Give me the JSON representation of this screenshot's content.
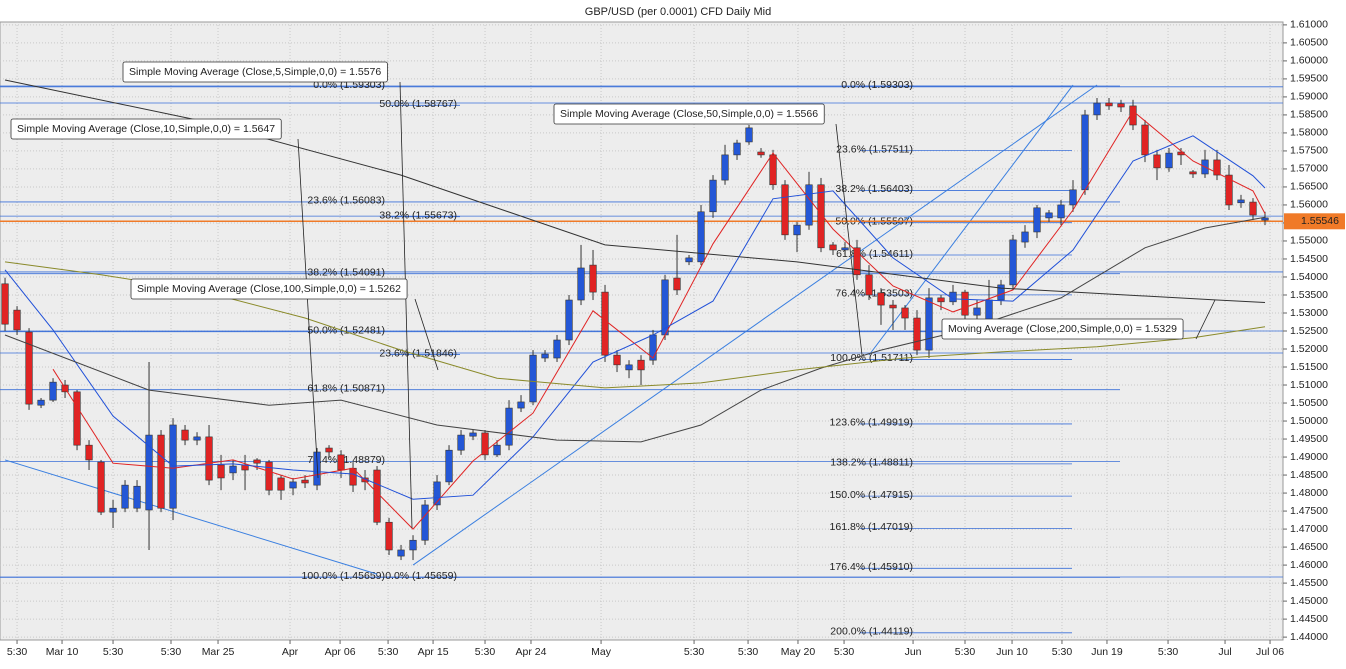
{
  "chart_data": {
    "type": "candlestick",
    "title": "GBP/USD (per 0.0001) CFD Daily Mid",
    "up_color": "#2457d6",
    "down_color": "#e02424",
    "xlim": [
      -0.42,
      106.5
    ],
    "xticks": [
      {
        "value": 1,
        "label": "5:30"
      },
      {
        "value": 4.75,
        "label": "Mar 10"
      },
      {
        "value": 9,
        "label": "5:30"
      },
      {
        "value": 13.83,
        "label": "5:30"
      },
      {
        "value": 17.75,
        "label": "Mar 25"
      },
      {
        "value": 23.75,
        "label": "Apr"
      },
      {
        "value": 27.92,
        "label": "Apr 06"
      },
      {
        "value": 31.92,
        "label": "5:30"
      },
      {
        "value": 35.67,
        "label": "Apr 15"
      },
      {
        "value": 40,
        "label": "5:30"
      },
      {
        "value": 43.83,
        "label": "Apr 24"
      },
      {
        "value": 49.67,
        "label": "May"
      },
      {
        "value": 57.42,
        "label": "5:30"
      },
      {
        "value": 61.92,
        "label": "5:30"
      },
      {
        "value": 66.08,
        "label": "May 20"
      },
      {
        "value": 69.92,
        "label": "5:30"
      },
      {
        "value": 75.67,
        "label": "Jun"
      },
      {
        "value": 80,
        "label": "5:30"
      },
      {
        "value": 83.92,
        "label": "Jun 10"
      },
      {
        "value": 88.08,
        "label": "5:30"
      },
      {
        "value": 91.83,
        "label": "Jun 19"
      },
      {
        "value": 96.92,
        "label": "5:30"
      },
      {
        "value": 101.67,
        "label": "Jul"
      },
      {
        "value": 105.42,
        "label": "Jul 06"
      }
    ],
    "ylim": [
      1.4392,
      1.6108
    ],
    "yticks": [
      {
        "value": 1.44,
        "label": "1.44000"
      },
      {
        "value": 1.445,
        "label": "1.44500"
      },
      {
        "value": 1.45,
        "label": "1.45000"
      },
      {
        "value": 1.455,
        "label": "1.45500"
      },
      {
        "value": 1.46,
        "label": "1.46000"
      },
      {
        "value": 1.465,
        "label": "1.46500"
      },
      {
        "value": 1.47,
        "label": "1.47000"
      },
      {
        "value": 1.475,
        "label": "1.47500"
      },
      {
        "value": 1.48,
        "label": "1.48000"
      },
      {
        "value": 1.485,
        "label": "1.48500"
      },
      {
        "value": 1.49,
        "label": "1.49000"
      },
      {
        "value": 1.495,
        "label": "1.49500"
      },
      {
        "value": 1.5,
        "label": "1.50000"
      },
      {
        "value": 1.505,
        "label": "1.50500"
      },
      {
        "value": 1.51,
        "label": "1.51000"
      },
      {
        "value": 1.515,
        "label": "1.51500"
      },
      {
        "value": 1.52,
        "label": "1.52000"
      },
      {
        "value": 1.525,
        "label": "1.52500"
      },
      {
        "value": 1.53,
        "label": "1.53000"
      },
      {
        "value": 1.535,
        "label": "1.53500"
      },
      {
        "value": 1.54,
        "label": "1.54000"
      },
      {
        "value": 1.545,
        "label": "1.54500"
      },
      {
        "value": 1.55,
        "label": "1.55000"
      },
      {
        "value": 1.555,
        "label": "1.55500"
      },
      {
        "value": 1.56,
        "label": "1.56000"
      },
      {
        "value": 1.565,
        "label": "1.56500"
      },
      {
        "value": 1.57,
        "label": "1.57000"
      },
      {
        "value": 1.575,
        "label": "1.57500"
      },
      {
        "value": 1.58,
        "label": "1.58000"
      },
      {
        "value": 1.585,
        "label": "1.58500"
      },
      {
        "value": 1.59,
        "label": "1.59000"
      },
      {
        "value": 1.595,
        "label": "1.59500"
      },
      {
        "value": 1.6,
        "label": "1.60000"
      },
      {
        "value": 1.605,
        "label": "1.60500"
      },
      {
        "value": 1.61,
        "label": "1.61000"
      }
    ],
    "grid": true,
    "last_price": {
      "value": 1.55546,
      "label": "1.55546",
      "color": "#f07a28"
    },
    "ohlc": [
      [
        1.5381,
        1.5398,
        1.525,
        1.5269
      ],
      [
        1.5308,
        1.5319,
        1.5239,
        1.5253
      ],
      [
        1.5247,
        1.5258,
        1.5031,
        1.5047
      ],
      [
        1.5044,
        1.5064,
        1.5036,
        1.5058
      ],
      [
        1.5058,
        1.5119,
        1.5053,
        1.5108
      ],
      [
        1.51,
        1.5114,
        1.5064,
        1.5081
      ],
      [
        1.5081,
        1.5086,
        1.4919,
        1.4933
      ],
      [
        1.4933,
        1.4947,
        1.4864,
        1.4892
      ],
      [
        1.4886,
        1.4892,
        1.4739,
        1.4747
      ],
      [
        1.4747,
        1.4781,
        1.4703,
        1.4758
      ],
      [
        1.4758,
        1.4836,
        1.4747,
        1.4822
      ],
      [
        1.4758,
        1.4836,
        1.4747,
        1.4819
      ],
      [
        1.4753,
        1.5164,
        1.4642,
        1.4961
      ],
      [
        1.4961,
        1.4975,
        1.4747,
        1.4758
      ],
      [
        1.4758,
        1.5008,
        1.4725,
        1.4989
      ],
      [
        1.4975,
        1.4989,
        1.4933,
        1.4947
      ],
      [
        1.4947,
        1.4969,
        1.4933,
        1.4956
      ],
      [
        1.4956,
        1.4989,
        1.4822,
        1.4836
      ],
      [
        1.4878,
        1.4906,
        1.4808,
        1.4842
      ],
      [
        1.4856,
        1.4892,
        1.4836,
        1.4875
      ],
      [
        1.4878,
        1.4906,
        1.4808,
        1.4864
      ],
      [
        1.4892,
        1.4897,
        1.4864,
        1.4883
      ],
      [
        1.4886,
        1.4892,
        1.4794,
        1.4808
      ],
      [
        1.4842,
        1.485,
        1.4781,
        1.4808
      ],
      [
        1.4814,
        1.4842,
        1.4794,
        1.4831
      ],
      [
        1.4836,
        1.485,
        1.4814,
        1.4828
      ],
      [
        1.4822,
        1.4925,
        1.4808,
        1.4914
      ],
      [
        1.4925,
        1.4933,
        1.4897,
        1.4914
      ],
      [
        1.4906,
        1.4919,
        1.4842,
        1.4864
      ],
      [
        1.4869,
        1.4886,
        1.4803,
        1.4822
      ],
      [
        1.4842,
        1.4864,
        1.4808,
        1.4831
      ],
      [
        1.4864,
        1.4875,
        1.4711,
        1.4719
      ],
      [
        1.4719,
        1.4731,
        1.4628,
        1.4642
      ],
      [
        1.4625,
        1.4656,
        1.4614,
        1.4642
      ],
      [
        1.4642,
        1.4683,
        1.4614,
        1.4669
      ],
      [
        1.4669,
        1.4781,
        1.4656,
        1.4767
      ],
      [
        1.4767,
        1.485,
        1.4753,
        1.4831
      ],
      [
        1.4831,
        1.4933,
        1.4822,
        1.4919
      ],
      [
        1.4919,
        1.4975,
        1.4906,
        1.4961
      ],
      [
        1.4958,
        1.4975,
        1.4947,
        1.4967
      ],
      [
        1.4967,
        1.4975,
        1.4892,
        1.4906
      ],
      [
        1.4906,
        1.4947,
        1.49,
        1.4933
      ],
      [
        1.4933,
        1.5058,
        1.4919,
        1.5036
      ],
      [
        1.5036,
        1.5072,
        1.5025,
        1.5053
      ],
      [
        1.5053,
        1.5197,
        1.5044,
        1.5183
      ],
      [
        1.5175,
        1.5197,
        1.5164,
        1.5186
      ],
      [
        1.5175,
        1.5239,
        1.5164,
        1.5225
      ],
      [
        1.5225,
        1.535,
        1.5211,
        1.5336
      ],
      [
        1.5336,
        1.5489,
        1.5322,
        1.5425
      ],
      [
        1.5433,
        1.5475,
        1.5336,
        1.5358
      ],
      [
        1.5358,
        1.5378,
        1.5164,
        1.5183
      ],
      [
        1.5183,
        1.5197,
        1.5136,
        1.5156
      ],
      [
        1.5142,
        1.5169,
        1.5119,
        1.5156
      ],
      [
        1.5169,
        1.5183,
        1.51,
        1.5142
      ],
      [
        1.5169,
        1.5253,
        1.5156,
        1.5239
      ],
      [
        1.5239,
        1.5406,
        1.5225,
        1.5392
      ],
      [
        1.5397,
        1.5517,
        1.535,
        1.5364
      ],
      [
        1.5442,
        1.5461,
        1.5433,
        1.5453
      ],
      [
        1.5442,
        1.56,
        1.5433,
        1.5581
      ],
      [
        1.5581,
        1.5683,
        1.5564,
        1.5669
      ],
      [
        1.5669,
        1.5767,
        1.5656,
        1.5739
      ],
      [
        1.5739,
        1.5781,
        1.5725,
        1.5772
      ],
      [
        1.5775,
        1.5822,
        1.5767,
        1.5814
      ],
      [
        1.5747,
        1.5758,
        1.5731,
        1.5739
      ],
      [
        1.5739,
        1.5753,
        1.5642,
        1.5656
      ],
      [
        1.5656,
        1.5669,
        1.5503,
        1.5517
      ],
      [
        1.5517,
        1.5553,
        1.5469,
        1.5544
      ],
      [
        1.5544,
        1.5692,
        1.5531,
        1.5656
      ],
      [
        1.5656,
        1.5675,
        1.5469,
        1.5481
      ],
      [
        1.5489,
        1.5497,
        1.5461,
        1.5475
      ],
      [
        1.5475,
        1.5497,
        1.5461,
        1.5481
      ],
      [
        1.5481,
        1.5503,
        1.5392,
        1.5406
      ],
      [
        1.5406,
        1.5433,
        1.5336,
        1.535
      ],
      [
        1.5356,
        1.5369,
        1.5267,
        1.5322
      ],
      [
        1.5322,
        1.5336,
        1.5253,
        1.5314
      ],
      [
        1.5314,
        1.5322,
        1.5253,
        1.5286
      ],
      [
        1.5286,
        1.5308,
        1.5183,
        1.5197
      ],
      [
        1.5197,
        1.5369,
        1.5175,
        1.5342
      ],
      [
        1.5342,
        1.535,
        1.5308,
        1.5331
      ],
      [
        1.5331,
        1.5378,
        1.5322,
        1.5358
      ],
      [
        1.5358,
        1.5364,
        1.5267,
        1.5294
      ],
      [
        1.5294,
        1.5336,
        1.5281,
        1.5314
      ],
      [
        1.5267,
        1.5392,
        1.5253,
        1.5336
      ],
      [
        1.5336,
        1.5392,
        1.5322,
        1.5378
      ],
      [
        1.5378,
        1.5517,
        1.5364,
        1.5503
      ],
      [
        1.5497,
        1.5544,
        1.5481,
        1.5525
      ],
      [
        1.5525,
        1.56,
        1.5508,
        1.5592
      ],
      [
        1.5564,
        1.5586,
        1.5553,
        1.5578
      ],
      [
        1.5564,
        1.5614,
        1.5544,
        1.56
      ],
      [
        1.56,
        1.5669,
        1.5581,
        1.5642
      ],
      [
        1.5642,
        1.5864,
        1.5628,
        1.585
      ],
      [
        1.585,
        1.5897,
        1.5836,
        1.5883
      ],
      [
        1.5883,
        1.5897,
        1.5864,
        1.5875
      ],
      [
        1.5881,
        1.5892,
        1.5858,
        1.5872
      ],
      [
        1.5875,
        1.5892,
        1.5808,
        1.5822
      ],
      [
        1.5822,
        1.5836,
        1.5719,
        1.5739
      ],
      [
        1.5739,
        1.5753,
        1.5669,
        1.5703
      ],
      [
        1.5703,
        1.5758,
        1.5692,
        1.5744
      ],
      [
        1.5747,
        1.5758,
        1.5711,
        1.5739
      ],
      [
        1.5692,
        1.5697,
        1.5675,
        1.5686
      ],
      [
        1.5686,
        1.5753,
        1.5675,
        1.5725
      ],
      [
        1.5725,
        1.5753,
        1.5669,
        1.5683
      ],
      [
        1.5683,
        1.5711,
        1.5586,
        1.56
      ],
      [
        1.5606,
        1.5628,
        1.5592,
        1.5614
      ],
      [
        1.5608,
        1.5619,
        1.5558,
        1.5572
      ],
      [
        1.5558,
        1.5581,
        1.5544,
        1.5564
      ]
    ],
    "series": [
      {
        "name": "Simple Moving Average (Close,5,Simple,0,0) = 1.5576",
        "color": "#e02424",
        "x": [
          4,
          9,
          14,
          19,
          24,
          29,
          34,
          39,
          44,
          49,
          54,
          59,
          64,
          69,
          74,
          79,
          84,
          89,
          94,
          99,
          104,
          105
        ],
        "values": [
          1.5144,
          1.4883,
          1.4869,
          1.4892,
          1.4839,
          1.4869,
          1.47,
          1.4889,
          1.5022,
          1.5306,
          1.5175,
          1.5492,
          1.5744,
          1.5533,
          1.5375,
          1.5303,
          1.5364,
          1.5586,
          1.5861,
          1.5722,
          1.5639,
          1.5576
        ]
      },
      {
        "name": "Simple Moving Average (Close,10,Simple,0,0) = 1.5647",
        "color": "#2050d8",
        "x": [
          0,
          4,
          9,
          14,
          19,
          24,
          29,
          34,
          39,
          44,
          49,
          54,
          59,
          64,
          69,
          74,
          79,
          84,
          89,
          94,
          99,
          104,
          105
        ],
        "values": [
          1.542,
          1.5253,
          1.5014,
          1.4875,
          1.4881,
          1.4864,
          1.4853,
          1.4783,
          1.4794,
          1.4956,
          1.5164,
          1.5239,
          1.5333,
          1.5617,
          1.5639,
          1.5453,
          1.5339,
          1.5333,
          1.5475,
          1.5722,
          1.5792,
          1.5681,
          1.5647
        ]
      },
      {
        "name": "Simple Moving Average (Close,50,Simple,0,0) = 1.5566",
        "color": "#444444",
        "x": [
          0,
          12,
          22,
          28,
          36,
          46,
          53,
          58,
          63,
          68,
          73,
          80,
          88,
          95,
          100,
          105
        ],
        "values": [
          1.5239,
          1.5086,
          1.5044,
          1.5058,
          1.4989,
          1.4947,
          1.4942,
          1.4989,
          1.5086,
          1.5147,
          1.5197,
          1.5253,
          1.5342,
          1.5481,
          1.5536,
          1.5566
        ]
      },
      {
        "name": "Simple Moving Average (Close,100,Simple,0,0) = 1.5262",
        "color": "#8a8a2a",
        "x": [
          0,
          8,
          16,
          25,
          33,
          41,
          50,
          58,
          66,
          75,
          83,
          91,
          99,
          105
        ],
        "values": [
          1.5442,
          1.5406,
          1.5364,
          1.5286,
          1.5197,
          1.5119,
          1.5092,
          1.5106,
          1.5142,
          1.5175,
          1.5192,
          1.5206,
          1.5231,
          1.5262
        ]
      },
      {
        "name": "Moving Average (Close,200,Simple,0,0) = 1.5329",
        "color": "#333333",
        "x": [
          0,
          16,
          33,
          50,
          66,
          83,
          101,
          105
        ],
        "values": [
          1.5947,
          1.5836,
          1.5683,
          1.5489,
          1.5442,
          1.5369,
          1.5336,
          1.5329
        ]
      }
    ],
    "horizontal_lines": {
      "color": "#3a6fd8",
      "values": [
        1.5928,
        1.5883,
        1.5569,
        1.5414,
        1.525,
        1.5189,
        1.4567
      ]
    },
    "trendlines": {
      "color": "#3a7fe0",
      "lines": [
        {
          "x": [
            0,
            31
          ],
          "values": [
            1.4892,
            1.4575
          ]
        },
        {
          "x": [
            34,
            91
          ],
          "values": [
            1.46,
            1.5933
          ]
        },
        {
          "x": [
            72,
            89
          ],
          "values": [
            1.5183,
            1.5933
          ]
        }
      ]
    },
    "fibonacci": [
      {
        "color": "#3a6fd8",
        "levels": [
          {
            "value": 1.59303,
            "label": "0.0% (1.59303)"
          },
          {
            "value": 1.56083,
            "label": "23.6% (1.56083)"
          },
          {
            "value": 1.54091,
            "label": "38.2% (1.54091)"
          },
          {
            "value": 1.52481,
            "label": "50.0% (1.52481)"
          },
          {
            "value": 1.50871,
            "label": "61.8% (1.50871)"
          },
          {
            "value": 1.48879,
            "label": "76.4% (1.48879)"
          },
          {
            "value": 1.45659,
            "label": "100.0% (1.45659)"
          }
        ]
      },
      {
        "color": "#3a6fd8",
        "levels": [
          {
            "value": 1.58767,
            "label": "50.0% (1.58767)"
          },
          {
            "value": 1.55673,
            "label": "38.2% (1.55673)"
          },
          {
            "value": 1.51846,
            "label": "23.6% (1.51846)"
          },
          {
            "value": 1.45659,
            "label": "0.0% (1.45659)"
          }
        ]
      },
      {
        "color": "#3a6fd8",
        "levels": [
          {
            "value": 1.59303,
            "label": "0.0% (1.59303)"
          },
          {
            "value": 1.57511,
            "label": "23.6% (1.57511)"
          },
          {
            "value": 1.56403,
            "label": "38.2% (1.56403)"
          },
          {
            "value": 1.55507,
            "label": "50.0% (1.55507)"
          },
          {
            "value": 1.54611,
            "label": "61.8% (1.54611)"
          },
          {
            "value": 1.53503,
            "label": "76.4% (1.53503)"
          },
          {
            "value": 1.51711,
            "label": "100.0% (1.51711)"
          },
          {
            "value": 1.49919,
            "label": "123.6% (1.49919)"
          },
          {
            "value": 1.48811,
            "label": "138.2% (1.48811)"
          },
          {
            "value": 1.47915,
            "label": "150.0% (1.47915)"
          },
          {
            "value": 1.47019,
            "label": "161.8% (1.47019)"
          },
          {
            "value": 1.4591,
            "label": "176.4% (1.45910)"
          },
          {
            "value": 1.44119,
            "label": "200.0% (1.44119)"
          }
        ]
      }
    ]
  }
}
